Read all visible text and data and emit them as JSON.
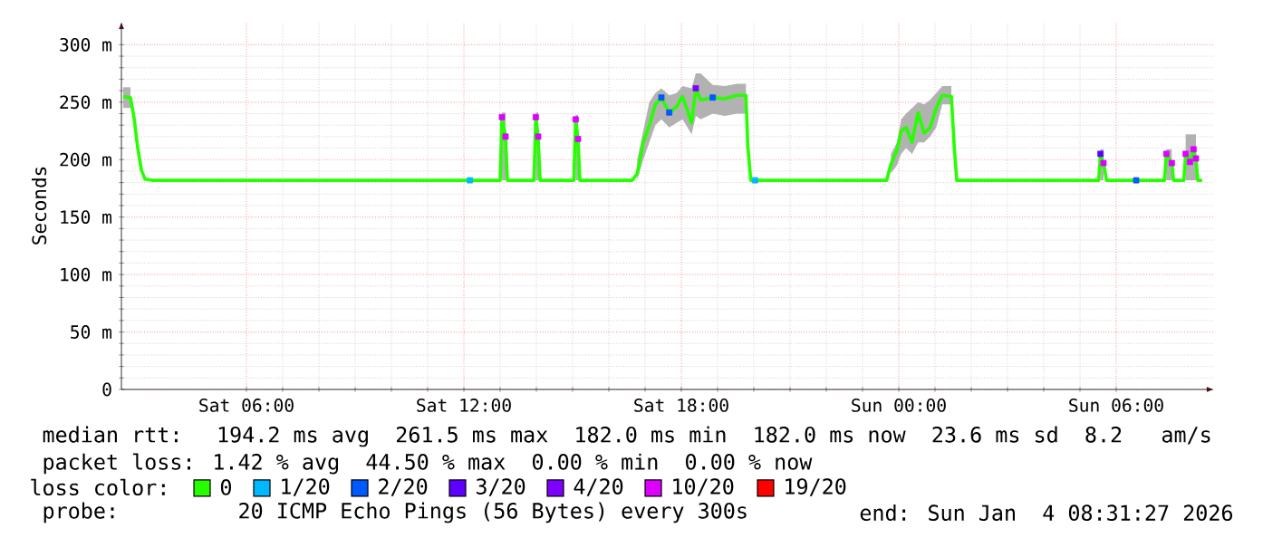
{
  "chart_data": {
    "type": "line",
    "ylabel": "Seconds",
    "x": [
      "2026-01-03T02:36",
      "2026-01-03T02:48",
      "2026-01-03T02:54",
      "2026-01-03T03:00",
      "2026-01-03T03:06",
      "2026-01-03T03:12",
      "2026-01-03T03:24",
      "2026-01-03T13:00",
      "2026-01-03T13:03",
      "2026-01-03T13:09",
      "2026-01-03T13:12",
      "2026-01-03T13:56",
      "2026-01-03T13:59",
      "2026-01-03T14:03",
      "2026-01-03T14:06",
      "2026-01-03T15:02",
      "2026-01-03T15:05",
      "2026-01-03T15:09",
      "2026-01-03T15:12",
      "2026-01-03T16:39",
      "2026-01-03T16:47",
      "2026-01-03T16:57",
      "2026-01-03T17:07",
      "2026-01-03T17:17",
      "2026-01-03T17:27",
      "2026-01-03T17:40",
      "2026-01-03T17:52",
      "2026-01-03T18:02",
      "2026-01-03T18:17",
      "2026-01-03T18:24",
      "2026-01-03T18:32",
      "2026-01-03T18:52",
      "2026-01-03T19:12",
      "2026-01-03T19:32",
      "2026-01-03T19:47",
      "2026-01-03T19:50",
      "2026-01-03T19:55",
      "2026-01-03T23:40",
      "2026-01-03T23:47",
      "2026-01-03T23:57",
      "2026-01-04T00:04",
      "2026-01-04T00:12",
      "2026-01-04T00:22",
      "2026-01-04T00:32",
      "2026-01-04T00:42",
      "2026-01-04T00:52",
      "2026-01-04T01:02",
      "2026-01-04T01:12",
      "2026-01-04T01:27",
      "2026-01-04T01:32",
      "2026-01-04T01:36",
      "2026-01-04T05:31",
      "2026-01-04T05:34",
      "2026-01-04T05:39",
      "2026-01-04T05:44",
      "2026-01-04T07:20",
      "2026-01-04T07:23",
      "2026-01-04T07:32",
      "2026-01-04T07:35",
      "2026-01-04T07:52",
      "2026-01-04T07:55",
      "2026-01-04T08:02",
      "2026-01-04T08:08",
      "2026-01-04T08:12",
      "2026-01-04T08:15",
      "2026-01-04T08:22"
    ],
    "series": [
      {
        "name": "0",
        "color": "#26ff00",
        "values": [
          255,
          254,
          236,
          210,
          191,
          183,
          182,
          182,
          237,
          220,
          182,
          182,
          237,
          220,
          182,
          182,
          235,
          218,
          182,
          182,
          188,
          215,
          230,
          248,
          254,
          241,
          246,
          255,
          232,
          262,
          252,
          254,
          253,
          256,
          256,
          212,
          182,
          182,
          196,
          208,
          225,
          228,
          215,
          241,
          223,
          228,
          245,
          256,
          255,
          210,
          182,
          182,
          205,
          197,
          182,
          182,
          205,
          197,
          182,
          182,
          205,
          198,
          209,
          201,
          182,
          182
        ],
        "lower": [
          245,
          245,
          null,
          null,
          null,
          null,
          null,
          null,
          182,
          182,
          null,
          null,
          182,
          182,
          null,
          null,
          182,
          182,
          null,
          null,
          182,
          200,
          215,
          230,
          235,
          228,
          232,
          235,
          222,
          238,
          235,
          240,
          238,
          240,
          240,
          null,
          null,
          null,
          188,
          195,
          205,
          210,
          205,
          215,
          215,
          220,
          228,
          248,
          248,
          null,
          null,
          null,
          182,
          182,
          null,
          null,
          182,
          182,
          null,
          null,
          182,
          182,
          182,
          182,
          null,
          null
        ],
        "upper": [
          263,
          263,
          null,
          null,
          null,
          null,
          null,
          null,
          241,
          241,
          null,
          null,
          241,
          241,
          null,
          null,
          239,
          239,
          null,
          null,
          200,
          225,
          250,
          258,
          262,
          256,
          258,
          264,
          262,
          275,
          275,
          265,
          264,
          266,
          266,
          null,
          null,
          null,
          205,
          215,
          235,
          240,
          245,
          250,
          248,
          252,
          258,
          264,
          264,
          null,
          null,
          null,
          209,
          209,
          null,
          null,
          209,
          209,
          null,
          null,
          222,
          222,
          222,
          222,
          null,
          null
        ]
      },
      {
        "name": "1/20",
        "type": "scatter",
        "marker": "square",
        "color": "#00b8ff",
        "x": [
          "2026-01-03T12:10",
          "2026-01-03T20:02"
        ],
        "values": [
          182,
          182
        ]
      },
      {
        "name": "2/20",
        "type": "scatter",
        "marker": "square",
        "color": "#0059ff",
        "x": [
          "2026-01-03T17:27",
          "2026-01-03T17:40",
          "2026-01-03T18:52",
          "2026-01-04T06:33"
        ],
        "values": [
          254,
          241,
          254,
          182
        ]
      },
      {
        "name": "3/20",
        "type": "scatter",
        "marker": "square",
        "color": "#5e00ff",
        "x": [
          "2026-01-04T05:34"
        ],
        "values": [
          205
        ]
      },
      {
        "name": "4/20",
        "type": "scatter",
        "marker": "square",
        "color": "#7e00ff",
        "x": [
          "2026-01-03T18:24"
        ],
        "values": [
          262
        ]
      },
      {
        "name": "10/20",
        "type": "scatter",
        "marker": "square",
        "color": "#dd00ff",
        "x": [
          "2026-01-03T13:03",
          "2026-01-03T13:09",
          "2026-01-03T13:59",
          "2026-01-03T14:03",
          "2026-01-03T15:05",
          "2026-01-03T15:09",
          "2026-01-04T05:39",
          "2026-01-04T07:23",
          "2026-01-04T07:32",
          "2026-01-04T07:55",
          "2026-01-04T08:02",
          "2026-01-04T08:08",
          "2026-01-04T08:12"
        ],
        "values": [
          237,
          220,
          237,
          220,
          235,
          218,
          197,
          205,
          197,
          205,
          198,
          209,
          201
        ]
      },
      {
        "name": "19/20",
        "type": "scatter",
        "marker": "square",
        "color": "#ff0000",
        "values": [
          null,
          null,
          null,
          null,
          null,
          null,
          null,
          null,
          null,
          null,
          null,
          null,
          null,
          null,
          null,
          null,
          null,
          null,
          null,
          null,
          null,
          null,
          null,
          null,
          null,
          null,
          null,
          null,
          null,
          null,
          null,
          null,
          null,
          null,
          null,
          null,
          null,
          null,
          null,
          null,
          null,
          null,
          null,
          null,
          null,
          null,
          null,
          null,
          null,
          null,
          null,
          null,
          null,
          null,
          null,
          null,
          null,
          null,
          null,
          null,
          null,
          null,
          null,
          null,
          null,
          null
        ]
      }
    ],
    "xlim": [
      "2026-01-03T02:33",
      "2026-01-04T08:42"
    ],
    "xticks": [
      {
        "value": "2026-01-03T06:00",
        "label": "Sat 06:00"
      },
      {
        "value": "2026-01-03T12:00",
        "label": "Sat 12:00"
      },
      {
        "value": "2026-01-03T18:00",
        "label": "Sat 18:00"
      },
      {
        "value": "2026-01-04T00:00",
        "label": "Sun 00:00"
      },
      {
        "value": "2026-01-04T06:00",
        "label": "Sun 06:00"
      }
    ],
    "ylim": [
      0,
      320
    ],
    "yticks": [
      0,
      {
        "value": 50,
        "label": "50 m"
      },
      {
        "value": 100,
        "label": "100 m"
      },
      {
        "value": 150,
        "label": "150 m"
      },
      {
        "value": 200,
        "label": "200 m"
      },
      {
        "value": 250,
        "label": "250 m"
      },
      {
        "value": 300,
        "label": "300 m"
      }
    ],
    "grid": true,
    "legend": "bottom",
    "legend_title": "loss color:",
    "annotations": [
      "median rtt:  194.2 ms avg  261.5 ms max  182.0 ms min  182.0 ms now  23.6 ms sd  8.2   am/s",
      "packet loss: 1.42 % avg  44.50 % max  0.00 % min  0.00 % now",
      "probe:       20 ICMP Echo Pings (56 Bytes) every 300s",
      "end: Sun Jan  4 08:31:27 2026"
    ]
  }
}
